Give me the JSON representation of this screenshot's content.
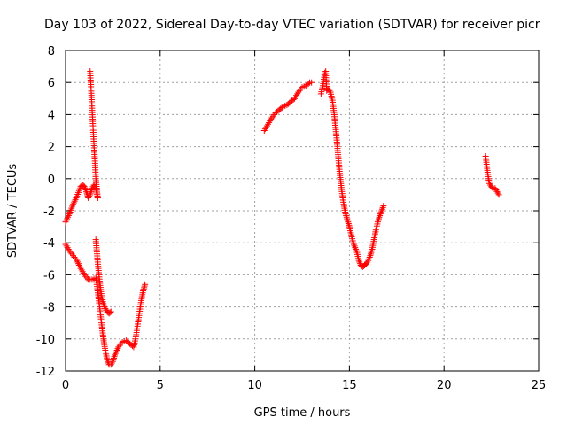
{
  "chart_data": {
    "type": "scatter",
    "title": "Day 103 of 2022, Sidereal Day-to-day VTEC variation (SDTVAR) for receiver picr",
    "xlabel": "GPS time / hours",
    "ylabel": "SDTVAR / TECUs",
    "xlim": [
      0,
      25
    ],
    "ylim": [
      -12,
      8
    ],
    "xticks": [
      0,
      5,
      10,
      15,
      20,
      25
    ],
    "yticks": [
      -12,
      -10,
      -8,
      -6,
      -4,
      -2,
      0,
      2,
      4,
      6,
      8
    ],
    "grid": true,
    "marker": "plus",
    "color": "#ff0000",
    "series": [
      {
        "name": "SDTVAR",
        "segments": [
          {
            "x": [
              0.0,
              0.2,
              0.4,
              0.6,
              0.8,
              0.9,
              1.0,
              1.1,
              1.2,
              1.3,
              1.4,
              1.5,
              1.6,
              1.7
            ],
            "y": [
              -2.7,
              -2.2,
              -1.6,
              -1.1,
              -0.5,
              -0.4,
              -0.5,
              -0.8,
              -1.2,
              -1.0,
              -0.6,
              -0.4,
              -0.6,
              -1.2
            ]
          },
          {
            "x": [
              1.3,
              1.35,
              1.4,
              1.45,
              1.5,
              1.55,
              1.6,
              1.65,
              1.7
            ],
            "y": [
              6.7,
              5.6,
              4.4,
              3.3,
              2.2,
              1.1,
              0.0,
              -0.6,
              -1.2
            ]
          },
          {
            "x": [
              0.0,
              0.2,
              0.4,
              0.6,
              0.8,
              1.0,
              1.2,
              1.4,
              1.6
            ],
            "y": [
              -4.1,
              -4.5,
              -4.8,
              -5.1,
              -5.6,
              -6.0,
              -6.3,
              -6.3,
              -6.2
            ]
          },
          {
            "x": [
              1.6,
              1.7,
              1.8,
              1.9,
              2.0,
              2.1,
              2.2,
              2.3,
              2.4
            ],
            "y": [
              -3.8,
              -5.2,
              -6.4,
              -7.3,
              -7.8,
              -8.1,
              -8.3,
              -8.4,
              -8.3
            ]
          },
          {
            "x": [
              1.6,
              1.7,
              1.8,
              1.9,
              2.0,
              2.1,
              2.2,
              2.3,
              2.4,
              2.5,
              2.6,
              2.8,
              3.0,
              3.2,
              3.4,
              3.6,
              3.7,
              3.8,
              3.9,
              4.0,
              4.1,
              4.2
            ],
            "y": [
              -6.2,
              -7.0,
              -8.0,
              -9.0,
              -10.0,
              -10.7,
              -11.3,
              -11.6,
              -11.6,
              -11.4,
              -11.0,
              -10.5,
              -10.2,
              -10.1,
              -10.3,
              -10.5,
              -10.0,
              -9.2,
              -8.4,
              -7.6,
              -7.0,
              -6.6
            ]
          },
          {
            "x": [
              10.5,
              10.7,
              10.9,
              11.1,
              11.3,
              11.5,
              11.7,
              11.9,
              12.1,
              12.3,
              12.5,
              12.7,
              12.9,
              13.0
            ],
            "y": [
              3.0,
              3.4,
              3.8,
              4.1,
              4.3,
              4.5,
              4.6,
              4.8,
              5.0,
              5.4,
              5.7,
              5.8,
              6.0,
              6.0
            ]
          },
          {
            "x": [
              13.5,
              13.6,
              13.7,
              13.75,
              13.8,
              13.9,
              14.0,
              14.1,
              14.2,
              14.3,
              14.4,
              14.5,
              14.6,
              14.7,
              14.8,
              14.9,
              15.0,
              15.1,
              15.2,
              15.3,
              15.4,
              15.5,
              15.6,
              15.7,
              15.8,
              15.9,
              16.0,
              16.1,
              16.2,
              16.3,
              16.4,
              16.5,
              16.6,
              16.7,
              16.8
            ],
            "y": [
              5.3,
              5.8,
              6.6,
              6.7,
              5.5,
              5.6,
              5.4,
              4.9,
              4.0,
              2.8,
              1.5,
              0.2,
              -0.8,
              -1.6,
              -2.2,
              -2.6,
              -3.0,
              -3.5,
              -4.0,
              -4.3,
              -4.6,
              -5.1,
              -5.4,
              -5.5,
              -5.4,
              -5.3,
              -5.1,
              -4.8,
              -4.4,
              -3.8,
              -3.2,
              -2.7,
              -2.3,
              -2.0,
              -1.7
            ]
          },
          {
            "x": [
              22.2,
              22.25,
              22.3,
              22.35,
              22.4,
              22.5,
              22.6,
              22.7,
              22.8,
              22.9
            ],
            "y": [
              1.4,
              0.9,
              0.4,
              0.0,
              -0.3,
              -0.5,
              -0.6,
              -0.6,
              -0.8,
              -1.0
            ]
          }
        ]
      }
    ]
  }
}
